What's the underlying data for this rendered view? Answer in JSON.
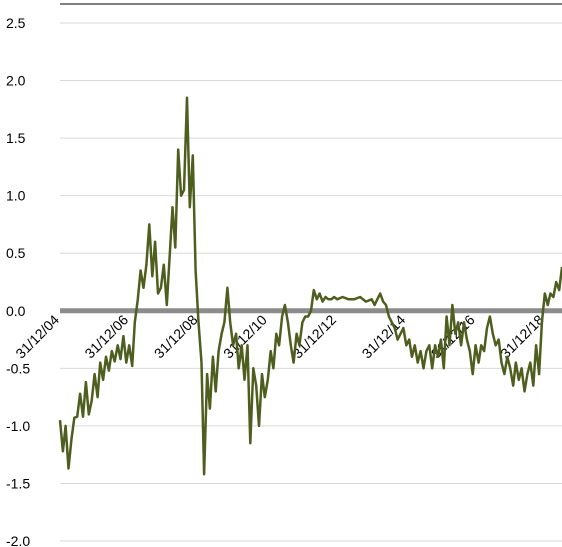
{
  "chart_data": {
    "type": "line",
    "title": "",
    "xlabel": "",
    "ylabel": "",
    "ylim": [
      -2.0,
      2.5
    ],
    "yticks": [
      "2.5",
      "2.0",
      "1.5",
      "1.0",
      "0.5",
      "0.0",
      "-0.5",
      "-1.0",
      "-1.5",
      "-2.0"
    ],
    "ytick_values": [
      2.5,
      2.0,
      1.5,
      1.0,
      0.5,
      0.0,
      -0.5,
      -1.0,
      -1.5,
      -2.0
    ],
    "xticks": [
      "31/12/04",
      "31/12/06",
      "31/12/08",
      "31/12/10",
      "31/12/12",
      "31/12/14",
      "31/12/16",
      "31/12/18"
    ],
    "xtick_dates": [
      "2004-12-31",
      "2006-12-31",
      "2008-12-31",
      "2010-12-31",
      "2012-12-31",
      "2014-12-31",
      "2016-12-31",
      "2018-12-31"
    ],
    "xlim": [
      "2004-12-31",
      "2019-06-30"
    ],
    "grid": "horizontal",
    "legend": "none",
    "zero_line": true,
    "colors": {
      "series": "#4e5e1e",
      "zero_line": "#8c8c8c",
      "grid": "#d9d9d9"
    },
    "series": [
      {
        "points": [
          [
            "2004-12-31",
            -0.95
          ],
          [
            "2005-01-31",
            -1.22
          ],
          [
            "2005-02-28",
            -1.0
          ],
          [
            "2005-03-31",
            -1.37
          ],
          [
            "2005-04-30",
            -1.12
          ],
          [
            "2005-05-31",
            -0.93
          ],
          [
            "2005-06-30",
            -0.92
          ],
          [
            "2005-07-31",
            -0.72
          ],
          [
            "2005-08-31",
            -0.92
          ],
          [
            "2005-09-30",
            -0.62
          ],
          [
            "2005-10-31",
            -0.9
          ],
          [
            "2005-11-30",
            -0.78
          ],
          [
            "2005-12-31",
            -0.55
          ],
          [
            "2006-01-31",
            -0.75
          ],
          [
            "2006-02-28",
            -0.45
          ],
          [
            "2006-03-31",
            -0.6
          ],
          [
            "2006-04-30",
            -0.4
          ],
          [
            "2006-05-31",
            -0.52
          ],
          [
            "2006-06-30",
            -0.35
          ],
          [
            "2006-07-31",
            -0.44
          ],
          [
            "2006-08-31",
            -0.3
          ],
          [
            "2006-09-30",
            -0.42
          ],
          [
            "2006-10-31",
            -0.22
          ],
          [
            "2006-11-30",
            -0.45
          ],
          [
            "2006-12-31",
            -0.3
          ],
          [
            "2007-01-31",
            -0.48
          ],
          [
            "2007-02-28",
            -0.1
          ],
          [
            "2007-03-31",
            0.1
          ],
          [
            "2007-04-30",
            0.35
          ],
          [
            "2007-05-31",
            0.2
          ],
          [
            "2007-06-30",
            0.4
          ],
          [
            "2007-07-31",
            0.75
          ],
          [
            "2007-08-31",
            0.3
          ],
          [
            "2007-09-30",
            0.6
          ],
          [
            "2007-10-31",
            0.15
          ],
          [
            "2007-11-30",
            0.2
          ],
          [
            "2007-12-31",
            0.4
          ],
          [
            "2008-01-31",
            0.05
          ],
          [
            "2008-02-29",
            0.45
          ],
          [
            "2008-03-31",
            0.9
          ],
          [
            "2008-04-30",
            0.55
          ],
          [
            "2008-05-31",
            1.4
          ],
          [
            "2008-06-30",
            1.0
          ],
          [
            "2008-07-31",
            1.05
          ],
          [
            "2008-08-31",
            1.85
          ],
          [
            "2008-09-30",
            0.9
          ],
          [
            "2008-10-31",
            1.35
          ],
          [
            "2008-11-30",
            0.35
          ],
          [
            "2008-12-31",
            -0.1
          ],
          [
            "2009-01-31",
            -0.45
          ],
          [
            "2009-02-28",
            -1.42
          ],
          [
            "2009-03-31",
            -0.55
          ],
          [
            "2009-04-30",
            -0.85
          ],
          [
            "2009-05-31",
            -0.4
          ],
          [
            "2009-06-30",
            -0.7
          ],
          [
            "2009-07-31",
            -0.35
          ],
          [
            "2009-08-31",
            -0.2
          ],
          [
            "2009-09-30",
            -0.1
          ],
          [
            "2009-10-31",
            0.2
          ],
          [
            "2009-11-30",
            -0.1
          ],
          [
            "2009-12-31",
            -0.3
          ],
          [
            "2010-01-31",
            -0.2
          ],
          [
            "2010-02-28",
            -0.5
          ],
          [
            "2010-03-31",
            -0.3
          ],
          [
            "2010-04-30",
            -0.6
          ],
          [
            "2010-05-31",
            -0.3
          ],
          [
            "2010-06-30",
            -1.15
          ],
          [
            "2010-07-31",
            -0.5
          ],
          [
            "2010-08-31",
            -0.65
          ],
          [
            "2010-09-30",
            -1.0
          ],
          [
            "2010-10-31",
            -0.55
          ],
          [
            "2010-11-30",
            -0.75
          ],
          [
            "2010-12-31",
            -0.6
          ],
          [
            "2011-01-31",
            -0.35
          ],
          [
            "2011-02-28",
            -0.5
          ],
          [
            "2011-03-31",
            -0.2
          ],
          [
            "2011-04-30",
            -0.3
          ],
          [
            "2011-05-31",
            -0.05
          ],
          [
            "2011-06-30",
            0.05
          ],
          [
            "2011-07-31",
            -0.1
          ],
          [
            "2011-08-31",
            -0.3
          ],
          [
            "2011-09-30",
            -0.45
          ],
          [
            "2011-10-31",
            -0.2
          ],
          [
            "2011-11-30",
            -0.3
          ],
          [
            "2011-12-31",
            -0.1
          ],
          [
            "2012-01-31",
            -0.05
          ],
          [
            "2012-02-29",
            -0.05
          ],
          [
            "2012-03-31",
            0.0
          ],
          [
            "2012-04-30",
            0.18
          ],
          [
            "2012-05-31",
            0.1
          ],
          [
            "2012-06-30",
            0.15
          ],
          [
            "2012-07-31",
            0.08
          ],
          [
            "2012-08-31",
            0.12
          ],
          [
            "2012-09-30",
            0.1
          ],
          [
            "2012-10-31",
            0.1
          ],
          [
            "2012-11-30",
            0.12
          ],
          [
            "2012-12-31",
            0.1
          ],
          [
            "2013-02-28",
            0.12
          ],
          [
            "2013-04-30",
            0.1
          ],
          [
            "2013-06-30",
            0.1
          ],
          [
            "2013-08-31",
            0.12
          ],
          [
            "2013-10-31",
            0.08
          ],
          [
            "2013-12-31",
            0.1
          ],
          [
            "2014-01-31",
            0.05
          ],
          [
            "2014-02-28",
            0.1
          ],
          [
            "2014-03-31",
            0.15
          ],
          [
            "2014-04-30",
            0.08
          ],
          [
            "2014-05-31",
            0.05
          ],
          [
            "2014-06-30",
            -0.05
          ],
          [
            "2014-07-31",
            -0.1
          ],
          [
            "2014-08-31",
            -0.15
          ],
          [
            "2014-09-30",
            -0.25
          ],
          [
            "2014-10-31",
            -0.2
          ],
          [
            "2014-11-30",
            -0.15
          ],
          [
            "2014-12-31",
            -0.3
          ],
          [
            "2015-01-31",
            -0.25
          ],
          [
            "2015-02-28",
            -0.4
          ],
          [
            "2015-03-31",
            -0.3
          ],
          [
            "2015-04-30",
            -0.45
          ],
          [
            "2015-05-31",
            -0.35
          ],
          [
            "2015-06-30",
            -0.5
          ],
          [
            "2015-07-31",
            -0.35
          ],
          [
            "2015-08-31",
            -0.3
          ],
          [
            "2015-09-30",
            -0.5
          ],
          [
            "2015-10-31",
            -0.3
          ],
          [
            "2015-11-30",
            -0.4
          ],
          [
            "2015-12-31",
            -0.25
          ],
          [
            "2016-01-31",
            -0.5
          ],
          [
            "2016-02-29",
            -0.05
          ],
          [
            "2016-03-31",
            -0.3
          ],
          [
            "2016-04-30",
            0.05
          ],
          [
            "2016-05-31",
            -0.2
          ],
          [
            "2016-06-30",
            -0.1
          ],
          [
            "2016-07-31",
            -0.3
          ],
          [
            "2016-08-31",
            -0.1
          ],
          [
            "2016-09-30",
            -0.25
          ],
          [
            "2016-10-31",
            -0.35
          ],
          [
            "2016-11-30",
            -0.55
          ],
          [
            "2016-12-31",
            -0.3
          ],
          [
            "2017-01-31",
            -0.45
          ],
          [
            "2017-02-28",
            -0.3
          ],
          [
            "2017-03-31",
            -0.35
          ],
          [
            "2017-04-30",
            -0.15
          ],
          [
            "2017-05-31",
            -0.05
          ],
          [
            "2017-06-30",
            -0.2
          ],
          [
            "2017-07-31",
            -0.3
          ],
          [
            "2017-08-31",
            -0.25
          ],
          [
            "2017-09-30",
            -0.45
          ],
          [
            "2017-10-31",
            -0.55
          ],
          [
            "2017-11-30",
            -0.4
          ],
          [
            "2017-12-31",
            -0.5
          ],
          [
            "2018-01-31",
            -0.65
          ],
          [
            "2018-02-28",
            -0.45
          ],
          [
            "2018-03-31",
            -0.6
          ],
          [
            "2018-04-30",
            -0.5
          ],
          [
            "2018-05-31",
            -0.7
          ],
          [
            "2018-06-30",
            -0.55
          ],
          [
            "2018-07-31",
            -0.45
          ],
          [
            "2018-08-31",
            -0.65
          ],
          [
            "2018-09-30",
            -0.3
          ],
          [
            "2018-10-31",
            -0.55
          ],
          [
            "2018-11-30",
            -0.1
          ],
          [
            "2018-12-31",
            0.15
          ],
          [
            "2019-01-31",
            0.05
          ],
          [
            "2019-02-28",
            0.15
          ],
          [
            "2019-03-31",
            0.12
          ],
          [
            "2019-04-30",
            0.25
          ],
          [
            "2019-05-31",
            0.18
          ],
          [
            "2019-06-30",
            0.38
          ]
        ]
      }
    ]
  }
}
